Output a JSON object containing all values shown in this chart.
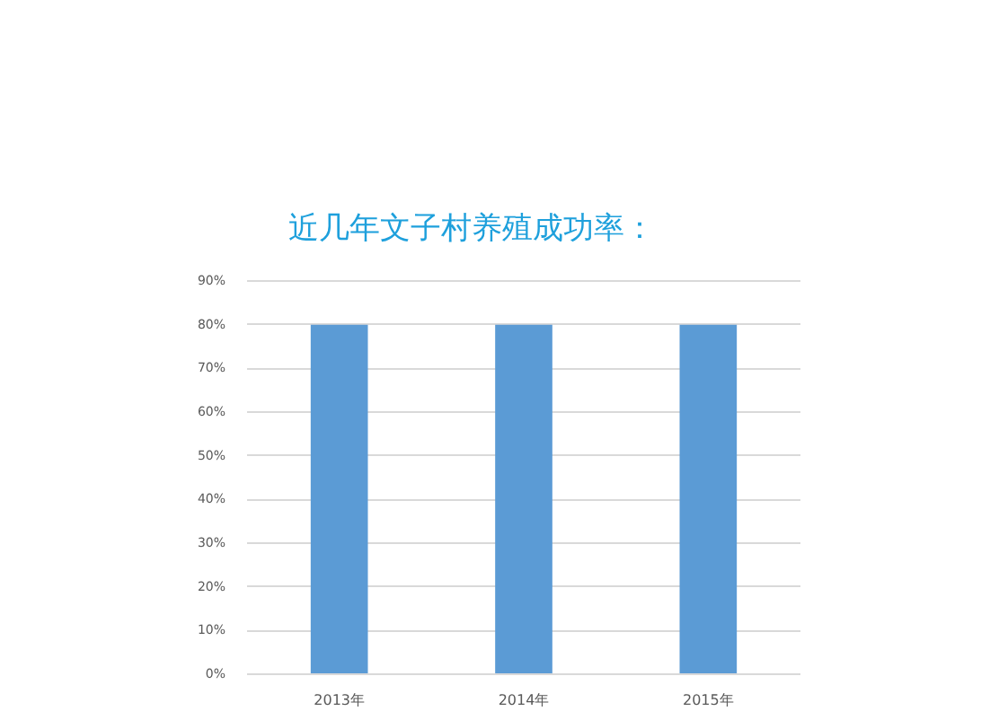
{
  "chart_data": {
    "type": "bar",
    "title": "近几年文子村养殖成功率：",
    "categories": [
      "2013年",
      "2014年",
      "2015年"
    ],
    "values": [
      80,
      80,
      80
    ],
    "color": "#5b9bd5",
    "ylim": [
      0,
      90
    ],
    "yticks": [
      {
        "value": 0,
        "label": "0%"
      },
      {
        "value": 10,
        "label": "10%"
      },
      {
        "value": 20,
        "label": "20%"
      },
      {
        "value": 30,
        "label": "30%"
      },
      {
        "value": 40,
        "label": "40%"
      },
      {
        "value": 50,
        "label": "50%"
      },
      {
        "value": 60,
        "label": "60%"
      },
      {
        "value": 70,
        "label": "70%"
      },
      {
        "value": 80,
        "label": "80%"
      },
      {
        "value": 90,
        "label": "90%"
      }
    ],
    "grid": "y"
  }
}
